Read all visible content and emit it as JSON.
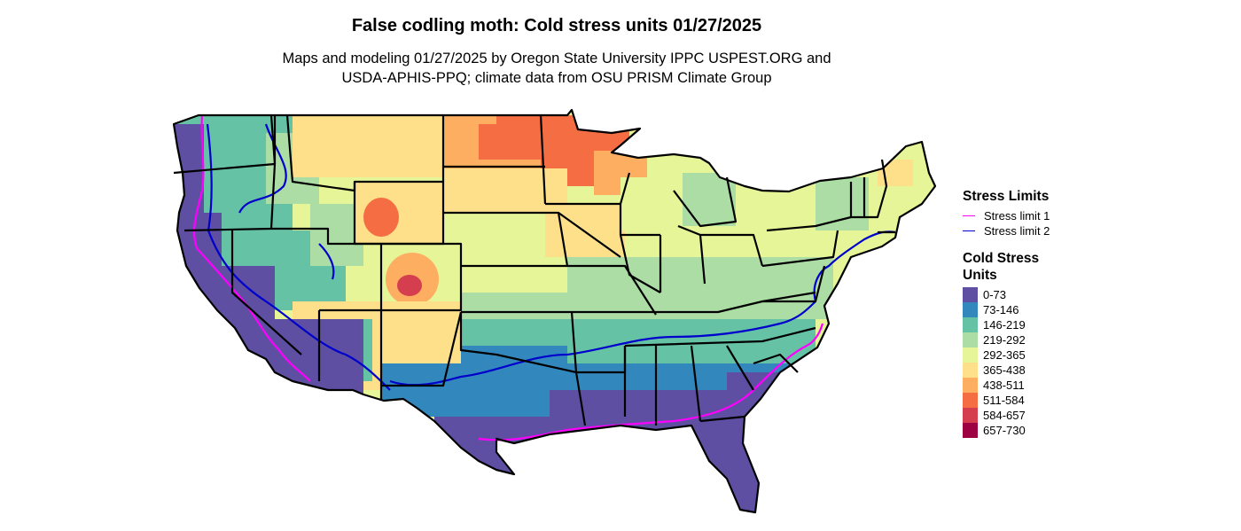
{
  "title": "False codling moth: Cold stress units 01/27/2025",
  "subtitle_lines": [
    "Maps and modeling 01/27/2025 by Oregon State University IPPC USPEST.ORG and",
    "USDA-APHIS-PPQ; climate data from OSU PRISM Climate Group"
  ],
  "legend": {
    "stress_title": "Stress Limits",
    "stress_limits": [
      {
        "label": "Stress limit 1",
        "color": "#ff00ff"
      },
      {
        "label": "Stress limit 2",
        "color": "#0000cc"
      }
    ],
    "cold_title": "Cold Stress Units",
    "cold_classes": [
      {
        "label": "0-73",
        "color": "#5e4fa2"
      },
      {
        "label": "73-146",
        "color": "#3288bd"
      },
      {
        "label": "146-219",
        "color": "#66c2a5"
      },
      {
        "label": "219-292",
        "color": "#abdda4"
      },
      {
        "label": "292-365",
        "color": "#e6f598"
      },
      {
        "label": "365-438",
        "color": "#fee08b"
      },
      {
        "label": "438-511",
        "color": "#fdae61"
      },
      {
        "label": "511-584",
        "color": "#f46d43"
      },
      {
        "label": "584-657",
        "color": "#d53e4f"
      },
      {
        "label": "657-730",
        "color": "#9e0142"
      }
    ]
  }
}
